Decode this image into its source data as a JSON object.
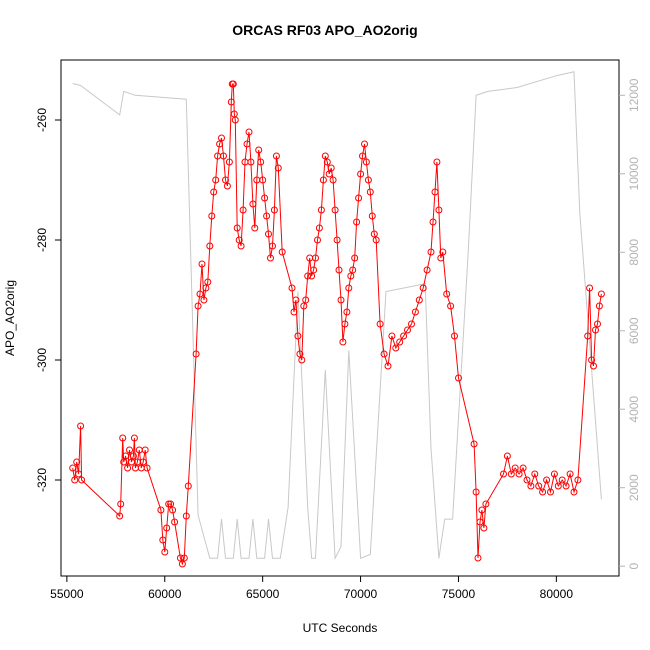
{
  "chart_data": {
    "type": "line",
    "title": "ORCAS RF03 APO_AO2orig",
    "xlabel": "UTC Seconds",
    "ylabel": "APO_AO2orig",
    "xlim": [
      54700,
      83200
    ],
    "ylim": [
      -336,
      -250
    ],
    "y2lim": [
      -250,
      12900
    ],
    "x_ticks": [
      55000,
      60000,
      65000,
      70000,
      75000,
      80000
    ],
    "x_tick_labels": [
      "55000",
      "60000",
      "65000",
      "70000",
      "75000",
      "80000"
    ],
    "y_ticks": [
      -320,
      -300,
      -280,
      -260
    ],
    "y_tick_labels": [
      "-320",
      "-300",
      "-280",
      "-260"
    ],
    "y2_ticks": [
      0,
      2000,
      4000,
      6000,
      8000,
      10000,
      12000
    ],
    "y2_tick_labels": [
      "0",
      "2000",
      "4000",
      "6000",
      "8000",
      "10000",
      "12000"
    ],
    "grid": false,
    "series": [
      {
        "color": "#ff0000",
        "style": "line+open-circles",
        "points": [
          [
            55300,
            -318
          ],
          [
            55400,
            -320
          ],
          [
            55500,
            -317
          ],
          [
            55600,
            -319
          ],
          [
            55700,
            -311
          ],
          [
            55750,
            -320
          ],
          [
            57700,
            -326
          ],
          [
            57750,
            -324
          ],
          [
            57850,
            -313
          ],
          [
            57900,
            -317
          ],
          [
            58000,
            -316
          ],
          [
            58100,
            -318
          ],
          [
            58200,
            -315
          ],
          [
            58300,
            -317
          ],
          [
            58400,
            -316
          ],
          [
            58450,
            -313
          ],
          [
            58500,
            -318
          ],
          [
            58600,
            -317
          ],
          [
            58700,
            -315
          ],
          [
            58800,
            -318
          ],
          [
            58900,
            -317
          ],
          [
            59000,
            -315
          ],
          [
            59100,
            -318
          ],
          [
            59800,
            -325
          ],
          [
            59900,
            -330
          ],
          [
            60000,
            -332
          ],
          [
            60100,
            -328
          ],
          [
            60200,
            -324
          ],
          [
            60300,
            -324
          ],
          [
            60400,
            -325
          ],
          [
            60500,
            -327
          ],
          [
            60800,
            -333
          ],
          [
            60900,
            -334
          ],
          [
            61000,
            -333
          ],
          [
            61100,
            -326
          ],
          [
            61200,
            -321
          ],
          [
            61600,
            -299
          ],
          [
            61700,
            -291
          ],
          [
            61800,
            -289
          ],
          [
            61900,
            -284
          ],
          [
            62000,
            -290
          ],
          [
            62100,
            -288
          ],
          [
            62200,
            -287
          ],
          [
            62300,
            -281
          ],
          [
            62400,
            -276
          ],
          [
            62500,
            -272
          ],
          [
            62600,
            -270
          ],
          [
            62700,
            -266
          ],
          [
            62800,
            -264
          ],
          [
            62900,
            -263
          ],
          [
            63000,
            -266
          ],
          [
            63100,
            -270
          ],
          [
            63200,
            -271
          ],
          [
            63300,
            -267
          ],
          [
            63400,
            -257
          ],
          [
            63450,
            -254
          ],
          [
            63500,
            -254
          ],
          [
            63550,
            -259
          ],
          [
            63600,
            -260
          ],
          [
            63700,
            -278
          ],
          [
            63800,
            -280
          ],
          [
            63900,
            -281
          ],
          [
            64000,
            -275
          ],
          [
            64100,
            -267
          ],
          [
            64200,
            -264
          ],
          [
            64300,
            -262
          ],
          [
            64400,
            -267
          ],
          [
            64500,
            -274
          ],
          [
            64600,
            -278
          ],
          [
            64700,
            -270
          ],
          [
            64800,
            -265
          ],
          [
            64900,
            -267
          ],
          [
            65000,
            -270
          ],
          [
            65100,
            -273
          ],
          [
            65200,
            -276
          ],
          [
            65300,
            -279
          ],
          [
            65400,
            -283
          ],
          [
            65500,
            -281
          ],
          [
            65600,
            -275
          ],
          [
            65700,
            -266
          ],
          [
            65800,
            -268
          ],
          [
            66000,
            -282
          ],
          [
            66500,
            -288
          ],
          [
            66600,
            -292
          ],
          [
            66700,
            -290
          ],
          [
            66800,
            -296
          ],
          [
            66900,
            -299
          ],
          [
            67000,
            -300
          ],
          [
            67100,
            -291
          ],
          [
            67200,
            -290
          ],
          [
            67300,
            -286
          ],
          [
            67400,
            -283
          ],
          [
            67500,
            -286
          ],
          [
            67600,
            -285
          ],
          [
            67700,
            -283
          ],
          [
            67800,
            -280
          ],
          [
            67900,
            -278
          ],
          [
            68000,
            -275
          ],
          [
            68100,
            -270
          ],
          [
            68200,
            -266
          ],
          [
            68300,
            -267
          ],
          [
            68400,
            -269
          ],
          [
            68500,
            -268
          ],
          [
            68600,
            -270
          ],
          [
            68700,
            -275
          ],
          [
            68800,
            -280
          ],
          [
            68900,
            -285
          ],
          [
            69000,
            -290
          ],
          [
            69100,
            -297
          ],
          [
            69200,
            -294
          ],
          [
            69300,
            -292
          ],
          [
            69400,
            -288
          ],
          [
            69500,
            -286
          ],
          [
            69600,
            -285
          ],
          [
            69700,
            -283
          ],
          [
            69800,
            -277
          ],
          [
            69900,
            -273
          ],
          [
            70000,
            -269
          ],
          [
            70100,
            -266
          ],
          [
            70200,
            -264
          ],
          [
            70300,
            -267
          ],
          [
            70400,
            -270
          ],
          [
            70500,
            -272
          ],
          [
            70600,
            -276
          ],
          [
            70700,
            -279
          ],
          [
            70800,
            -280
          ],
          [
            71000,
            -294
          ],
          [
            71200,
            -299
          ],
          [
            71400,
            -301
          ],
          [
            71600,
            -296
          ],
          [
            71800,
            -298
          ],
          [
            72000,
            -297
          ],
          [
            72200,
            -296
          ],
          [
            72400,
            -295
          ],
          [
            72600,
            -294
          ],
          [
            72800,
            -292
          ],
          [
            73000,
            -290
          ],
          [
            73200,
            -288
          ],
          [
            73400,
            -285
          ],
          [
            73600,
            -282
          ],
          [
            73700,
            -277
          ],
          [
            73800,
            -272
          ],
          [
            73900,
            -267
          ],
          [
            74000,
            -275
          ],
          [
            74100,
            -283
          ],
          [
            74200,
            -282
          ],
          [
            74400,
            -289
          ],
          [
            74600,
            -291
          ],
          [
            74800,
            -296
          ],
          [
            75000,
            -303
          ],
          [
            75800,
            -314
          ],
          [
            75900,
            -322
          ],
          [
            76000,
            -333
          ],
          [
            76100,
            -327
          ],
          [
            76200,
            -325
          ],
          [
            76300,
            -328
          ],
          [
            76400,
            -324
          ],
          [
            77300,
            -319
          ],
          [
            77500,
            -316
          ],
          [
            77700,
            -319
          ],
          [
            77900,
            -318
          ],
          [
            78100,
            -319
          ],
          [
            78300,
            -318
          ],
          [
            78500,
            -320
          ],
          [
            78700,
            -321
          ],
          [
            78900,
            -319
          ],
          [
            79100,
            -321
          ],
          [
            79300,
            -322
          ],
          [
            79500,
            -320
          ],
          [
            79700,
            -322
          ],
          [
            79900,
            -319
          ],
          [
            80100,
            -321
          ],
          [
            80300,
            -320
          ],
          [
            80500,
            -321
          ],
          [
            80700,
            -319
          ],
          [
            80900,
            -322
          ],
          [
            81100,
            -320
          ],
          [
            81600,
            -296
          ],
          [
            81700,
            -288
          ],
          [
            81800,
            -300
          ],
          [
            81900,
            -301
          ],
          [
            82000,
            -295
          ],
          [
            82100,
            -294
          ],
          [
            82200,
            -291
          ],
          [
            82300,
            -289
          ]
        ]
      },
      {
        "color": "#c8c8c8",
        "axis": "right",
        "style": "line",
        "points": [
          [
            55300,
            12300
          ],
          [
            55700,
            12250
          ],
          [
            57700,
            11500
          ],
          [
            57900,
            12100
          ],
          [
            58500,
            12000
          ],
          [
            61100,
            11900
          ],
          [
            61700,
            1300
          ],
          [
            62300,
            200
          ],
          [
            62700,
            200
          ],
          [
            62900,
            1200
          ],
          [
            63100,
            200
          ],
          [
            63500,
            200
          ],
          [
            63700,
            1200
          ],
          [
            63900,
            200
          ],
          [
            64300,
            200
          ],
          [
            64500,
            1200
          ],
          [
            64700,
            200
          ],
          [
            65100,
            200
          ],
          [
            65300,
            1200
          ],
          [
            65500,
            200
          ],
          [
            65900,
            200
          ],
          [
            66300,
            1500
          ],
          [
            66800,
            7000
          ],
          [
            67300,
            1500
          ],
          [
            67500,
            200
          ],
          [
            67700,
            200
          ],
          [
            68200,
            5000
          ],
          [
            68700,
            200
          ],
          [
            69000,
            500
          ],
          [
            69400,
            5500
          ],
          [
            70000,
            200
          ],
          [
            70500,
            300
          ],
          [
            71300,
            7000
          ],
          [
            73300,
            7200
          ],
          [
            73600,
            3000
          ],
          [
            74000,
            200
          ],
          [
            74300,
            1200
          ],
          [
            74700,
            1200
          ],
          [
            75500,
            8000
          ],
          [
            75900,
            12000
          ],
          [
            76500,
            12100
          ],
          [
            78000,
            12200
          ],
          [
            80000,
            12500
          ],
          [
            80900,
            12600
          ],
          [
            81200,
            9000
          ],
          [
            82300,
            1700
          ]
        ]
      }
    ]
  }
}
